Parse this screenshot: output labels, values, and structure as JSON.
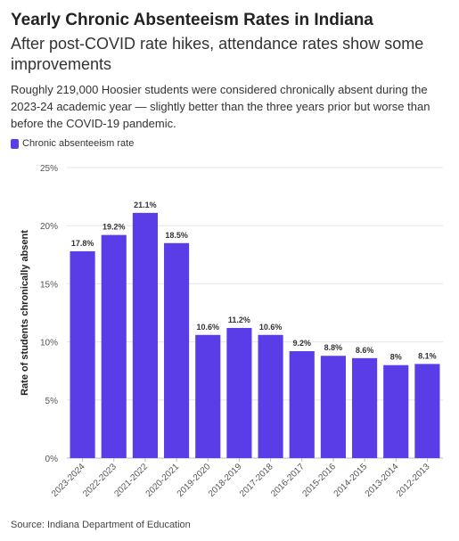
{
  "title": "Yearly Chronic Absenteeism Rates in Indiana",
  "subtitle": "After post-COVID rate hikes, attendance rates show some improvements",
  "description": "Roughly 219,000 Hoosier students were considered chronically absent during the 2023-24 academic year — slightly better than the three years prior but worse than before the COVID-19 pandemic.",
  "source": "Source: Indiana Department of Education",
  "colors": {
    "bar": "#5a3de6",
    "grid": "#e6e6e6",
    "axis": "#bbbbbb"
  },
  "chart_data": {
    "type": "bar",
    "categories": [
      "2023-2024",
      "2022-2023",
      "2021-2022",
      "2020-2021",
      "2019-2020",
      "2018-2019",
      "2017-2018",
      "2016-2017",
      "2015-2016",
      "2014-2015",
      "2013-2014",
      "2012-2013"
    ],
    "series": [
      {
        "name": "Chronic absenteeism rate",
        "values": [
          17.8,
          19.2,
          21.1,
          18.5,
          10.6,
          11.2,
          10.6,
          9.2,
          8.8,
          8.6,
          8,
          8.1
        ],
        "labels": [
          "17.8%",
          "19.2%",
          "21.1%",
          "18.5%",
          "10.6%",
          "11.2%",
          "10.6%",
          "9.2%",
          "8.8%",
          "8.6%",
          "8%",
          "8.1%"
        ]
      }
    ],
    "ylabel": "Rate of students chronically absent",
    "xlabel": "",
    "ylim": [
      0,
      25
    ],
    "yticks": [
      0,
      5,
      10,
      15,
      20,
      25
    ],
    "ytick_labels": [
      "0%",
      "5%",
      "10%",
      "15%",
      "20%",
      "25%"
    ],
    "grid": true,
    "legend_position": "top-left"
  }
}
